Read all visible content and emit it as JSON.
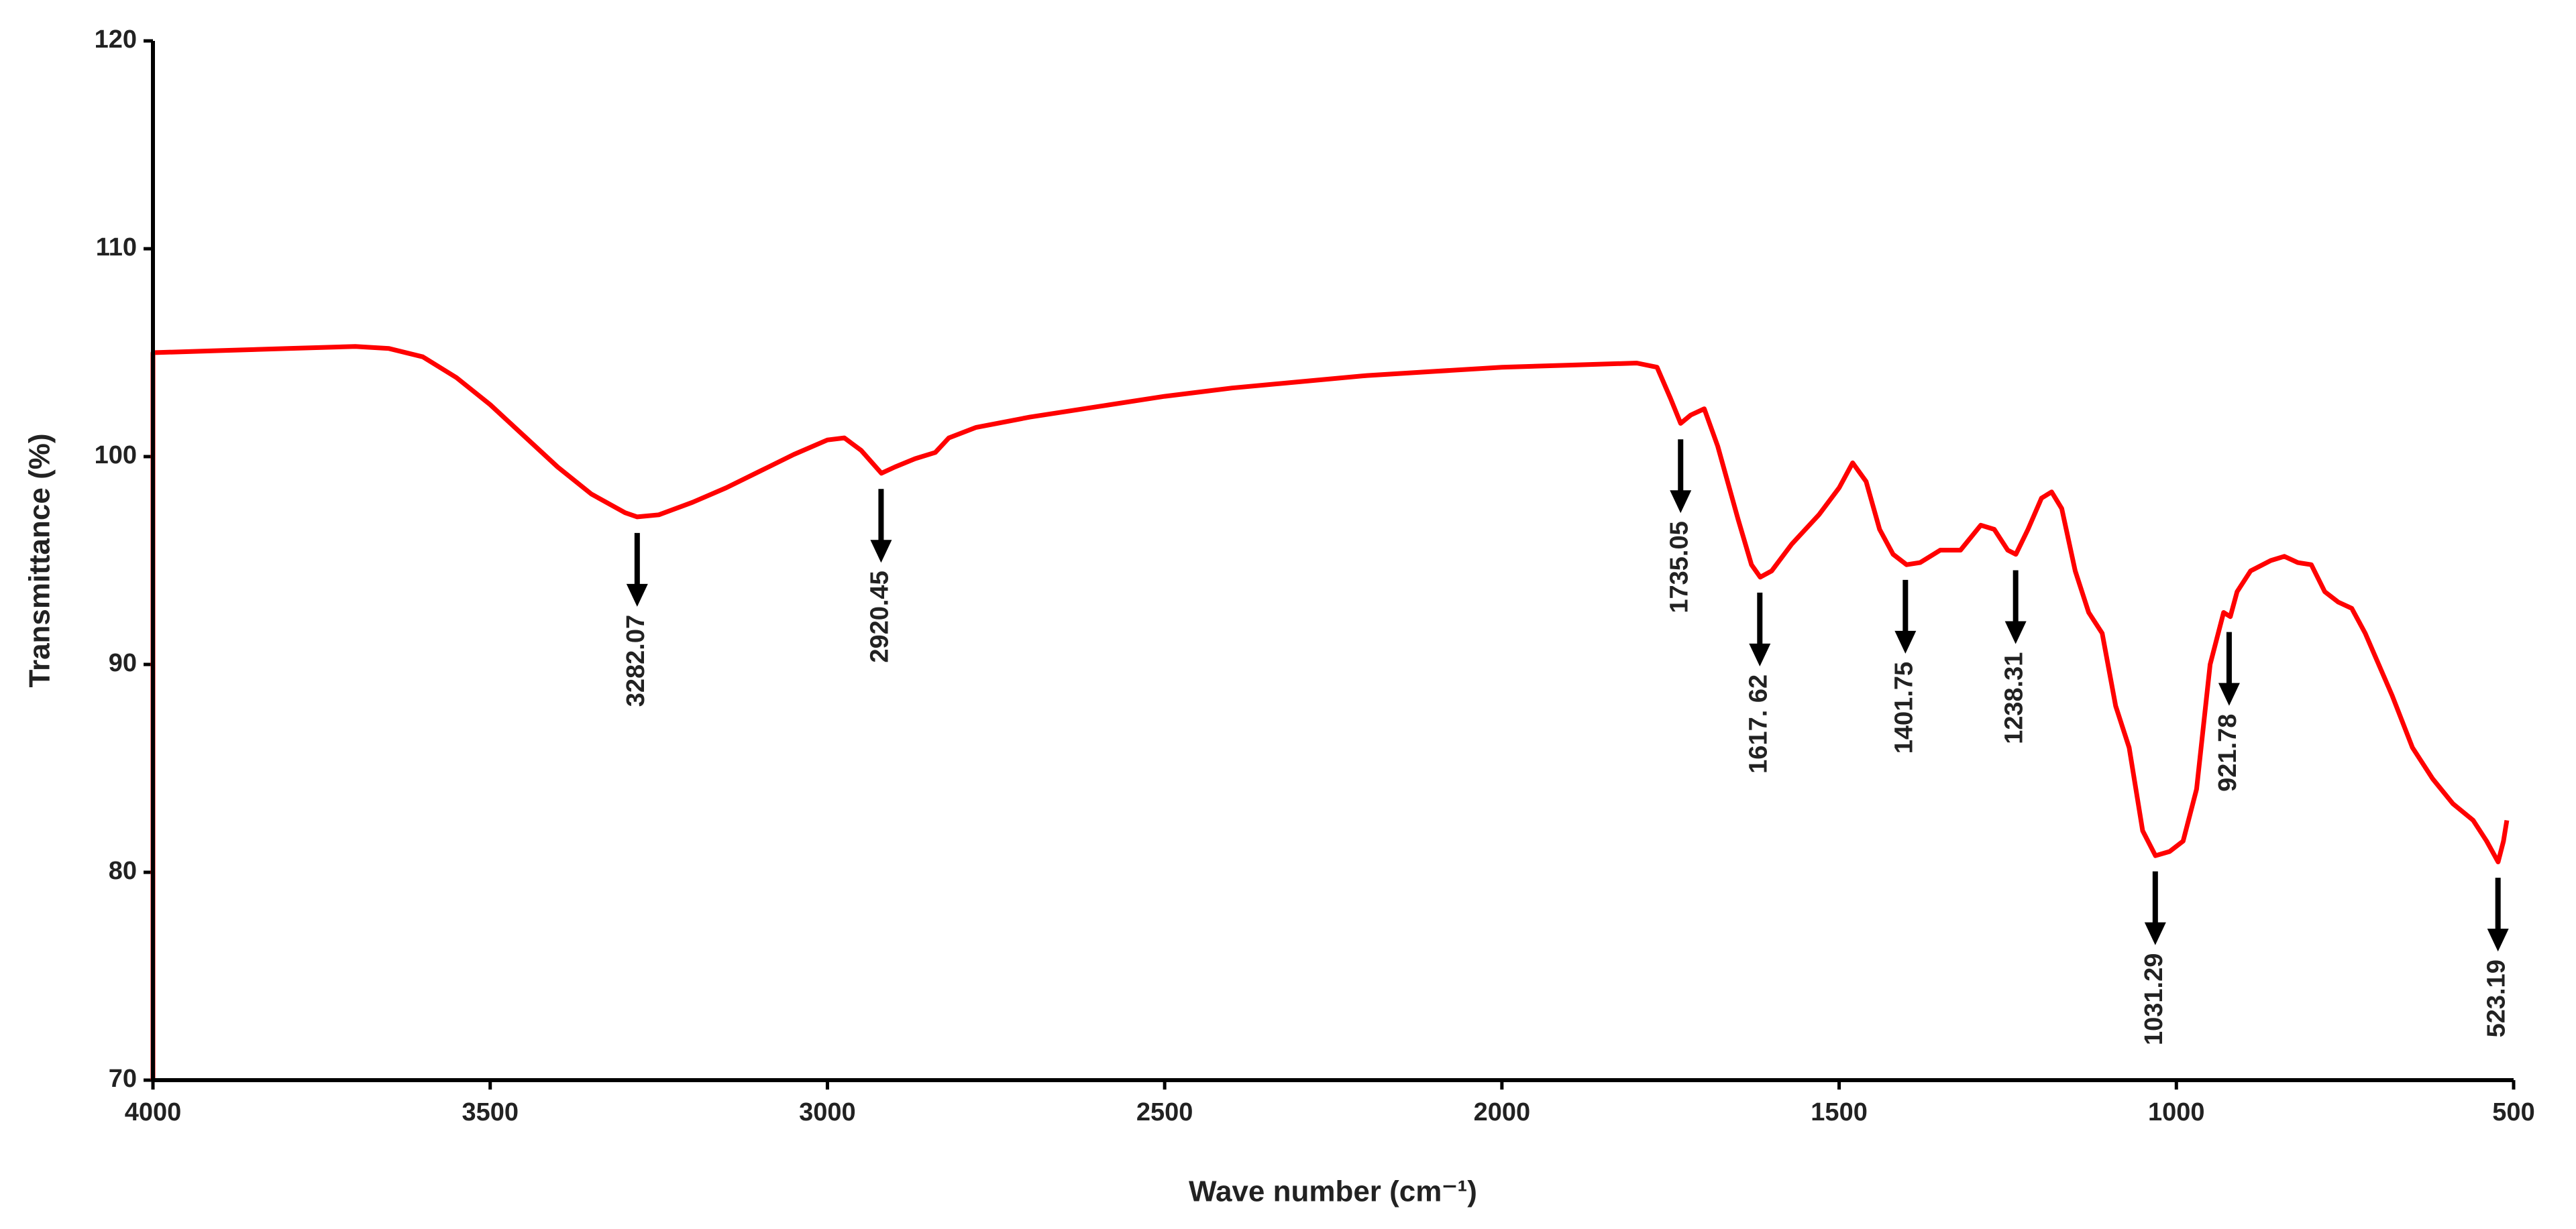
{
  "chart_data": {
    "type": "line",
    "xlabel": "Wave number (cm⁻¹)",
    "ylabel": "Transmittance (%)",
    "color": "#ff0000",
    "x": [
      4000,
      4000,
      3900,
      3800,
      3700,
      3650,
      3600,
      3550,
      3500,
      3450,
      3400,
      3350,
      3300,
      3282,
      3250,
      3200,
      3150,
      3100,
      3050,
      3000,
      2975,
      2950,
      2920,
      2900,
      2870,
      2840,
      2820,
      2780,
      2700,
      2600,
      2500,
      2400,
      2300,
      2200,
      2100,
      2000,
      1900,
      1800,
      1770,
      1750,
      1735,
      1720,
      1700,
      1680,
      1650,
      1630,
      1617,
      1600,
      1570,
      1530,
      1500,
      1480,
      1460,
      1440,
      1420,
      1400,
      1380,
      1350,
      1320,
      1290,
      1270,
      1250,
      1238,
      1220,
      1200,
      1185,
      1170,
      1150,
      1130,
      1110,
      1090,
      1070,
      1050,
      1031,
      1010,
      990,
      970,
      950,
      930,
      920,
      910,
      890,
      860,
      840,
      820,
      800,
      780,
      760,
      740,
      720,
      700,
      680,
      650,
      620,
      590,
      560,
      540,
      523,
      515,
      510
    ],
    "values": [
      70,
      105,
      105.1,
      105.2,
      105.3,
      105.2,
      104.8,
      103.8,
      102.5,
      101,
      99.5,
      98.2,
      97.3,
      97.1,
      97.2,
      97.8,
      98.5,
      99.3,
      100.1,
      100.8,
      100.9,
      100.3,
      99.2,
      99.5,
      99.9,
      100.2,
      100.9,
      101.4,
      101.9,
      102.4,
      102.9,
      103.3,
      103.6,
      103.9,
      104.1,
      104.3,
      104.4,
      104.5,
      104.3,
      102.8,
      101.6,
      102.0,
      102.3,
      100.5,
      97,
      94.8,
      94.2,
      94.5,
      95.8,
      97.2,
      98.5,
      99.7,
      98.8,
      96.5,
      95.3,
      94.8,
      94.9,
      95.5,
      95.5,
      96.7,
      96.5,
      95.5,
      95.3,
      96.5,
      98,
      98.3,
      97.5,
      94.5,
      92.5,
      91.5,
      88,
      86,
      82,
      80.8,
      81,
      81.5,
      84,
      90,
      92.5,
      92.3,
      93.5,
      94.5,
      95,
      95.2,
      94.9,
      94.8,
      93.5,
      93,
      92.7,
      91.5,
      90,
      88.5,
      86,
      84.5,
      83.3,
      82.5,
      81.5,
      80.5,
      81.5,
      82.5
    ],
    "annotations": [
      {
        "x": 3282.07,
        "label": "3282.07"
      },
      {
        "x": 2920.45,
        "label": "2920.45"
      },
      {
        "x": 1735.05,
        "label": "1735.05"
      },
      {
        "x": 1617.62,
        "label": "1617. 62"
      },
      {
        "x": 1401.75,
        "label": "1401.75"
      },
      {
        "x": 1238.31,
        "label": "1238.31"
      },
      {
        "x": 1031.29,
        "label": "1031.29"
      },
      {
        "x": 921.78,
        "label": "921.78"
      },
      {
        "x": 523.19,
        "label": "523.19"
      }
    ],
    "xlim": [
      4000,
      500
    ],
    "xticks": [
      4000,
      3500,
      3000,
      2500,
      2000,
      1500,
      1000,
      500
    ],
    "ylim": [
      70,
      120
    ],
    "yticks": [
      70,
      80,
      90,
      100,
      110,
      120
    ]
  }
}
